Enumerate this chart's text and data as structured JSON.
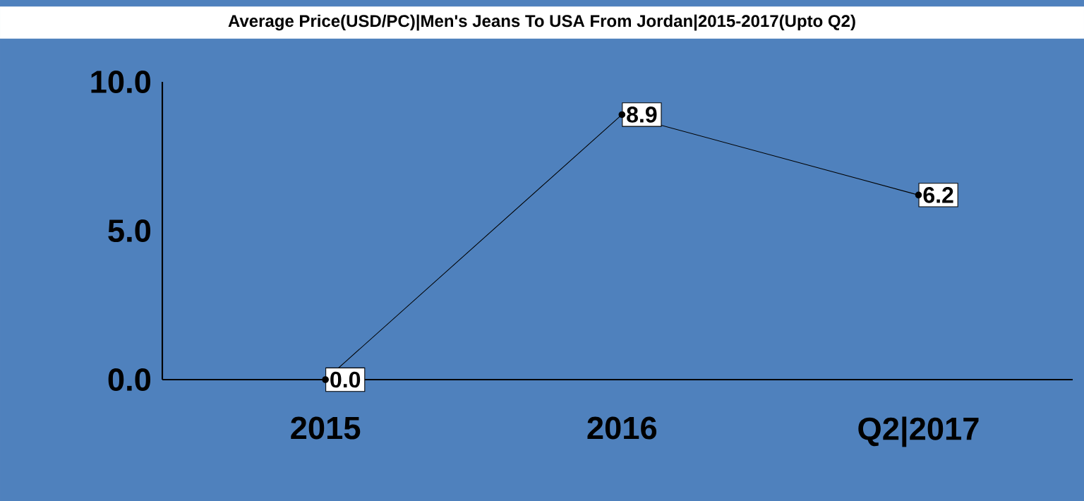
{
  "chart_data": {
    "type": "line",
    "title": "Average Price(USD/PC)|Men's Jeans To USA From Jordan|2015-2017(Upto Q2)",
    "categories": [
      "2015",
      "2016",
      "Q2|2017"
    ],
    "series": [
      {
        "color": "#000000",
        "values": [
          0.0,
          8.9,
          6.2
        ],
        "value_labels": [
          "0.0",
          "8.9",
          "6.2"
        ]
      }
    ],
    "ylim": [
      0,
      10
    ],
    "yticks": [
      {
        "value": 0,
        "label": "0.0"
      },
      {
        "value": 5,
        "label": "5.0"
      },
      {
        "value": 10,
        "label": "10.0"
      }
    ],
    "marker": "circle",
    "line_style": "solid",
    "grid": false
  }
}
